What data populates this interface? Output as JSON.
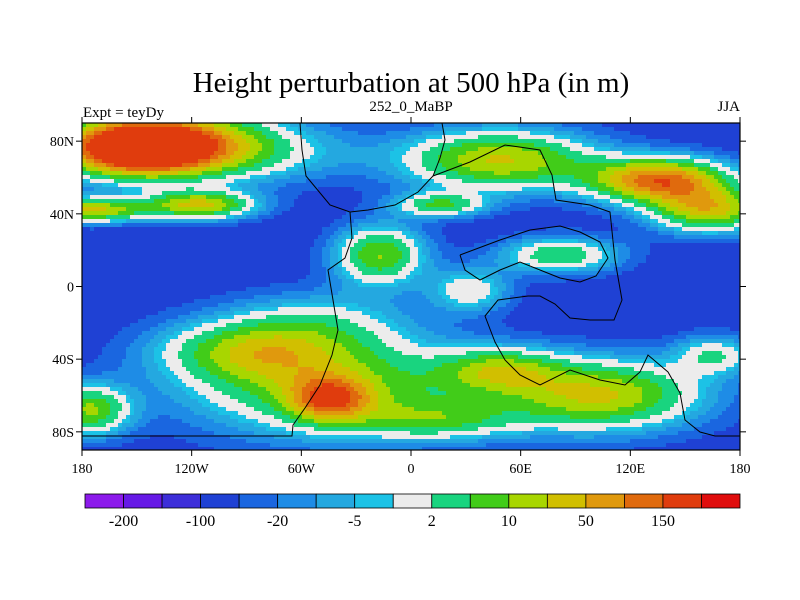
{
  "title": "Height perturbation at 500 hPa (in m)",
  "left_label": "Expt = teyDy",
  "center_label": "252_0_MaBP",
  "right_label": "JJA",
  "map": {
    "type": "filled-contour map",
    "projection": "cylindrical equidistant",
    "lon_range": [
      -180,
      180
    ],
    "lat_range": [
      -90,
      90
    ],
    "lat_ticks": [
      {
        "value": 80,
        "label": "80N"
      },
      {
        "value": 40,
        "label": "40N"
      },
      {
        "value": 0,
        "label": "0"
      },
      {
        "value": -40,
        "label": "40S"
      },
      {
        "value": -80,
        "label": "80S"
      }
    ],
    "lon_ticks": [
      {
        "value": -180,
        "label": "180"
      },
      {
        "value": -120,
        "label": "120W"
      },
      {
        "value": -60,
        "label": "60W"
      },
      {
        "value": 0,
        "label": "0"
      },
      {
        "value": 60,
        "label": "60E"
      },
      {
        "value": 120,
        "label": "120E"
      },
      {
        "value": 180,
        "label": "180"
      }
    ]
  },
  "colorbar": {
    "colors": [
      "#8c1aeb",
      "#6619e6",
      "#3d2ed9",
      "#1f41d4",
      "#1a66e0",
      "#1e8ce6",
      "#24a8e0",
      "#1cc2e6",
      "#ececec",
      "#19d47f",
      "#41cc19",
      "#a8d600",
      "#d1bf00",
      "#e0990d",
      "#e06a0d",
      "#e03c0d",
      "#e00d0d"
    ],
    "labels": [
      {
        "after_box": 1,
        "text": "-200"
      },
      {
        "after_box": 3,
        "text": "-100"
      },
      {
        "after_box": 5,
        "text": "-20"
      },
      {
        "after_box": 7,
        "text": "-5"
      },
      {
        "after_box": 9,
        "text": "2"
      },
      {
        "after_box": 11,
        "text": "10"
      },
      {
        "after_box": 13,
        "text": "50"
      },
      {
        "after_box": 15,
        "text": "150"
      }
    ]
  },
  "field": {
    "level_colors": [
      "#1f41d4",
      "#1a66e0",
      "#1e8ce6",
      "#24a8e0",
      "#1cc2e6",
      "#ececec",
      "#19d47f",
      "#41cc19",
      "#a8d600",
      "#d1bf00",
      "#e0990d",
      "#e06a0d",
      "#e03c0d"
    ]
  }
}
